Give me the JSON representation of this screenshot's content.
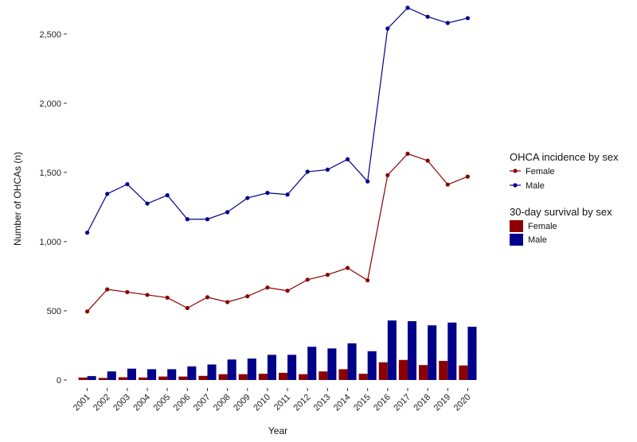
{
  "chart_data": {
    "type": "bar+line",
    "title": "",
    "xlabel": "Year",
    "ylabel": "Number of OHCAs (n)",
    "ylim": [
      0,
      2700
    ],
    "yticks": [
      0,
      500,
      1000,
      1500,
      2000,
      2500
    ],
    "ytick_labels": [
      "0",
      "500",
      "1,000",
      "1,500",
      "2,000",
      "2,500"
    ],
    "grid": false,
    "categories": [
      "2001",
      "2002",
      "2003",
      "2004",
      "2005",
      "2006",
      "2007",
      "2008",
      "2009",
      "2010",
      "2011",
      "2012",
      "2013",
      "2014",
      "2015",
      "2016",
      "2017",
      "2018",
      "2019",
      "2020"
    ],
    "lines": [
      {
        "name": "Female",
        "color": "#8b0000",
        "values": [
          495,
          655,
          635,
          615,
          595,
          520,
          598,
          563,
          605,
          668,
          645,
          725,
          760,
          810,
          720,
          1480,
          1635,
          1585,
          1412,
          1470
        ]
      },
      {
        "name": "Male",
        "color": "#00008b",
        "values": [
          1065,
          1345,
          1415,
          1275,
          1335,
          1162,
          1162,
          1213,
          1315,
          1352,
          1340,
          1505,
          1520,
          1595,
          1435,
          2540,
          2690,
          2625,
          2580,
          2615
        ]
      }
    ],
    "bars": [
      {
        "name": "Female",
        "color": "#8b0000",
        "values": [
          18,
          15,
          20,
          18,
          25,
          25,
          30,
          42,
          42,
          45,
          52,
          42,
          62,
          78,
          45,
          128,
          145,
          108,
          138,
          105
        ]
      },
      {
        "name": "Male",
        "color": "#00008b",
        "values": [
          28,
          62,
          82,
          78,
          78,
          98,
          112,
          148,
          155,
          182,
          182,
          240,
          228,
          265,
          208,
          430,
          425,
          395,
          415,
          385
        ]
      }
    ],
    "legend": {
      "placement": "right",
      "groups": [
        {
          "title": "OHCA incidence by sex",
          "kind": "line",
          "entries": [
            "Female",
            "Male"
          ]
        },
        {
          "title": "30-day survival by sex",
          "kind": "bar",
          "entries": [
            "Female",
            "Male"
          ]
        }
      ]
    }
  }
}
